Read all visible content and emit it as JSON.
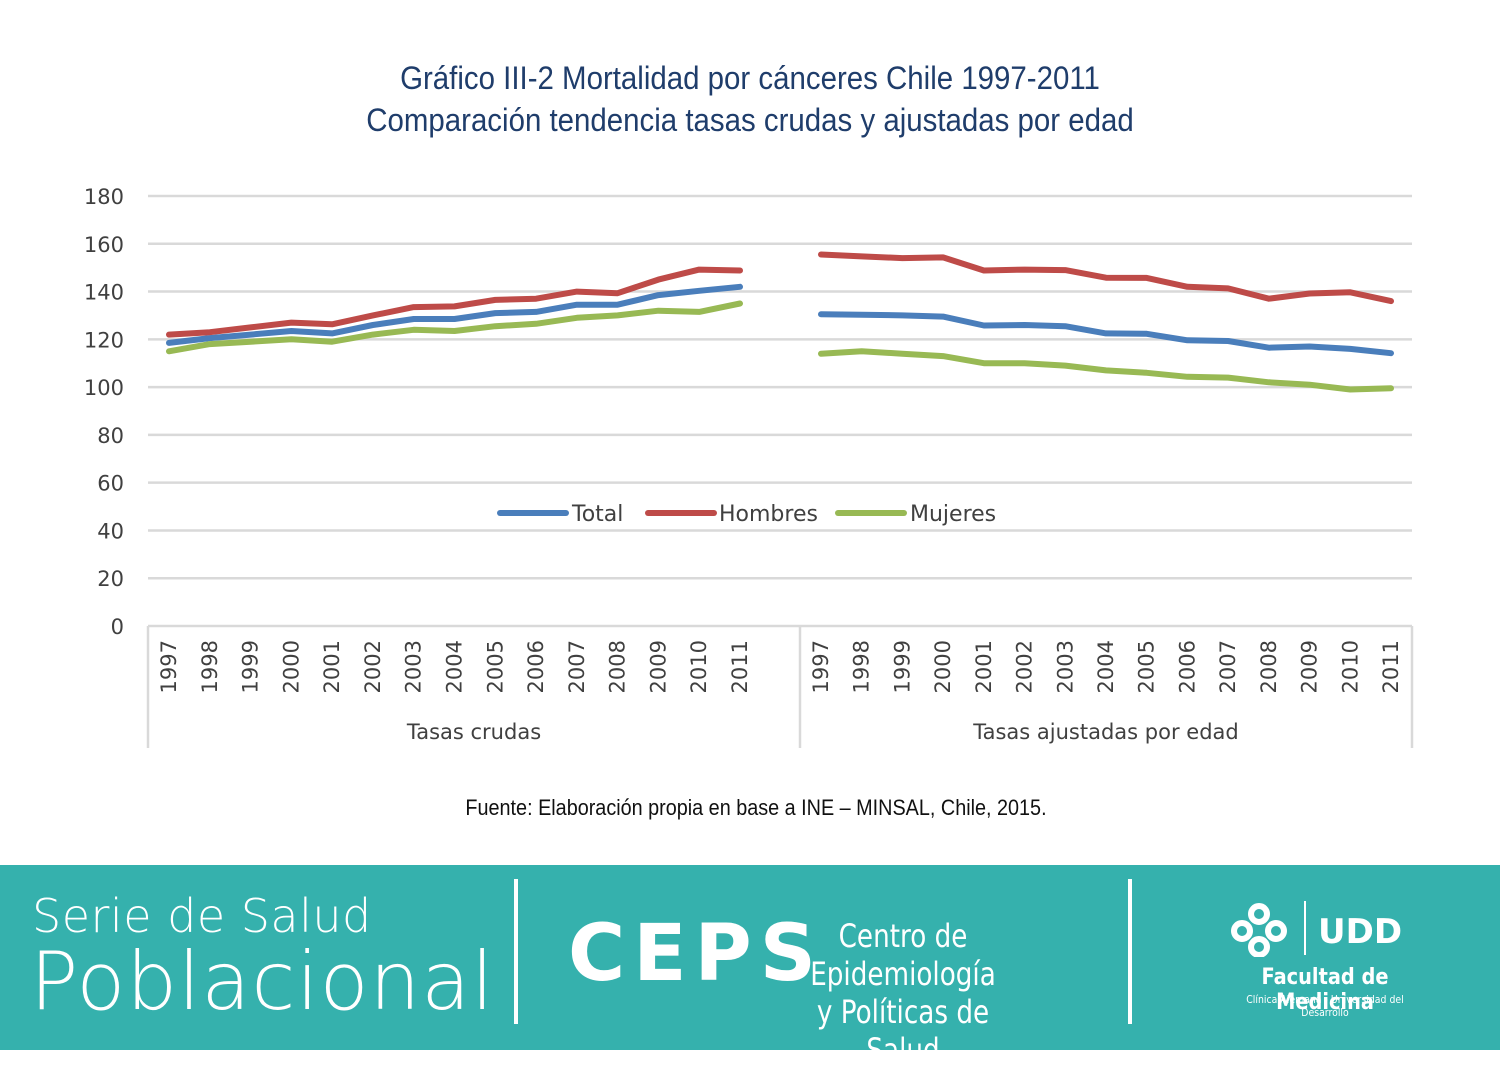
{
  "title_line1": "Gráfico III-2 Mortalidad por cánceres Chile 1997-2011",
  "title_line2": "Comparación tendencia tasas crudas y ajustadas por edad",
  "source": "Fuente: Elaboración propia en base a INE – MINSAL, Chile, 2015.",
  "colors": {
    "total": "#4a7ebb",
    "hombres": "#be4b48",
    "mujeres": "#98b954",
    "title": "#1f3d6b",
    "footer_bg": "#35b1ad"
  },
  "chart_data": {
    "type": "line",
    "title": "Gráfico III-2 Mortalidad por cánceres Chile 1997-2011 Comparación tendencia tasas crudas y ajustadas por edad",
    "ylim": [
      0,
      180
    ],
    "yticks": [
      0,
      20,
      40,
      60,
      80,
      100,
      120,
      140,
      160,
      180
    ],
    "grid": true,
    "legend_position": "center",
    "groups": [
      {
        "label": "Tasas crudas",
        "categories": [
          "1997",
          "1998",
          "1999",
          "2000",
          "2001",
          "2002",
          "2003",
          "2004",
          "2005",
          "2006",
          "2007",
          "2008",
          "2009",
          "2010",
          "2011"
        ]
      },
      {
        "label": "Tasas ajustadas por edad",
        "categories": [
          "1997",
          "1998",
          "1999",
          "2000",
          "2001",
          "2002",
          "2003",
          "2004",
          "2005",
          "2006",
          "2007",
          "2008",
          "2009",
          "2010",
          "2011"
        ]
      }
    ],
    "series": [
      {
        "name": "Total",
        "color": "#4a7ebb",
        "values": [
          [
            118.5,
            120.5,
            122,
            123.5,
            122.5,
            126,
            128.5,
            128.5,
            131,
            131.5,
            134.5,
            134.5,
            138.5,
            140.3,
            142
          ],
          [
            130.5,
            130.3,
            130,
            129.5,
            125.8,
            126,
            125.5,
            122.5,
            122.3,
            119.6,
            119.3,
            116.5,
            117,
            116,
            114.2
          ]
        ]
      },
      {
        "name": "Hombres",
        "color": "#be4b48",
        "values": [
          [
            122,
            123,
            125,
            127,
            126.3,
            130,
            133.5,
            133.8,
            136.5,
            137,
            140,
            139.3,
            145,
            149.2,
            148.8
          ],
          [
            155.5,
            154.7,
            154,
            154.3,
            148.8,
            149.2,
            149,
            145.8,
            145.7,
            142,
            141.3,
            137,
            139.2,
            139.7,
            136
          ]
        ]
      },
      {
        "name": "Mujeres",
        "color": "#98b954",
        "values": [
          [
            115,
            118,
            119,
            120,
            119,
            122,
            124,
            123.5,
            125.5,
            126.5,
            129,
            130,
            132,
            131.5,
            135
          ],
          [
            114,
            115,
            114,
            113,
            110,
            110,
            109,
            107,
            106,
            104.3,
            104,
            102,
            101,
            99,
            99.5
          ]
        ]
      }
    ]
  },
  "footer": {
    "series_line1": "Serie de Salud",
    "series_line2": "Poblacional",
    "ceps_name": "CEPS",
    "ceps_desc_line1": "Centro de Epidemiología",
    "ceps_desc_line2": "y Políticas de Salud",
    "faculty_name": "Facultad de Medicina",
    "faculty_sub": "Clínica Alemana - Universidad del Desarrollo",
    "udd_logo_text": "UDD"
  }
}
